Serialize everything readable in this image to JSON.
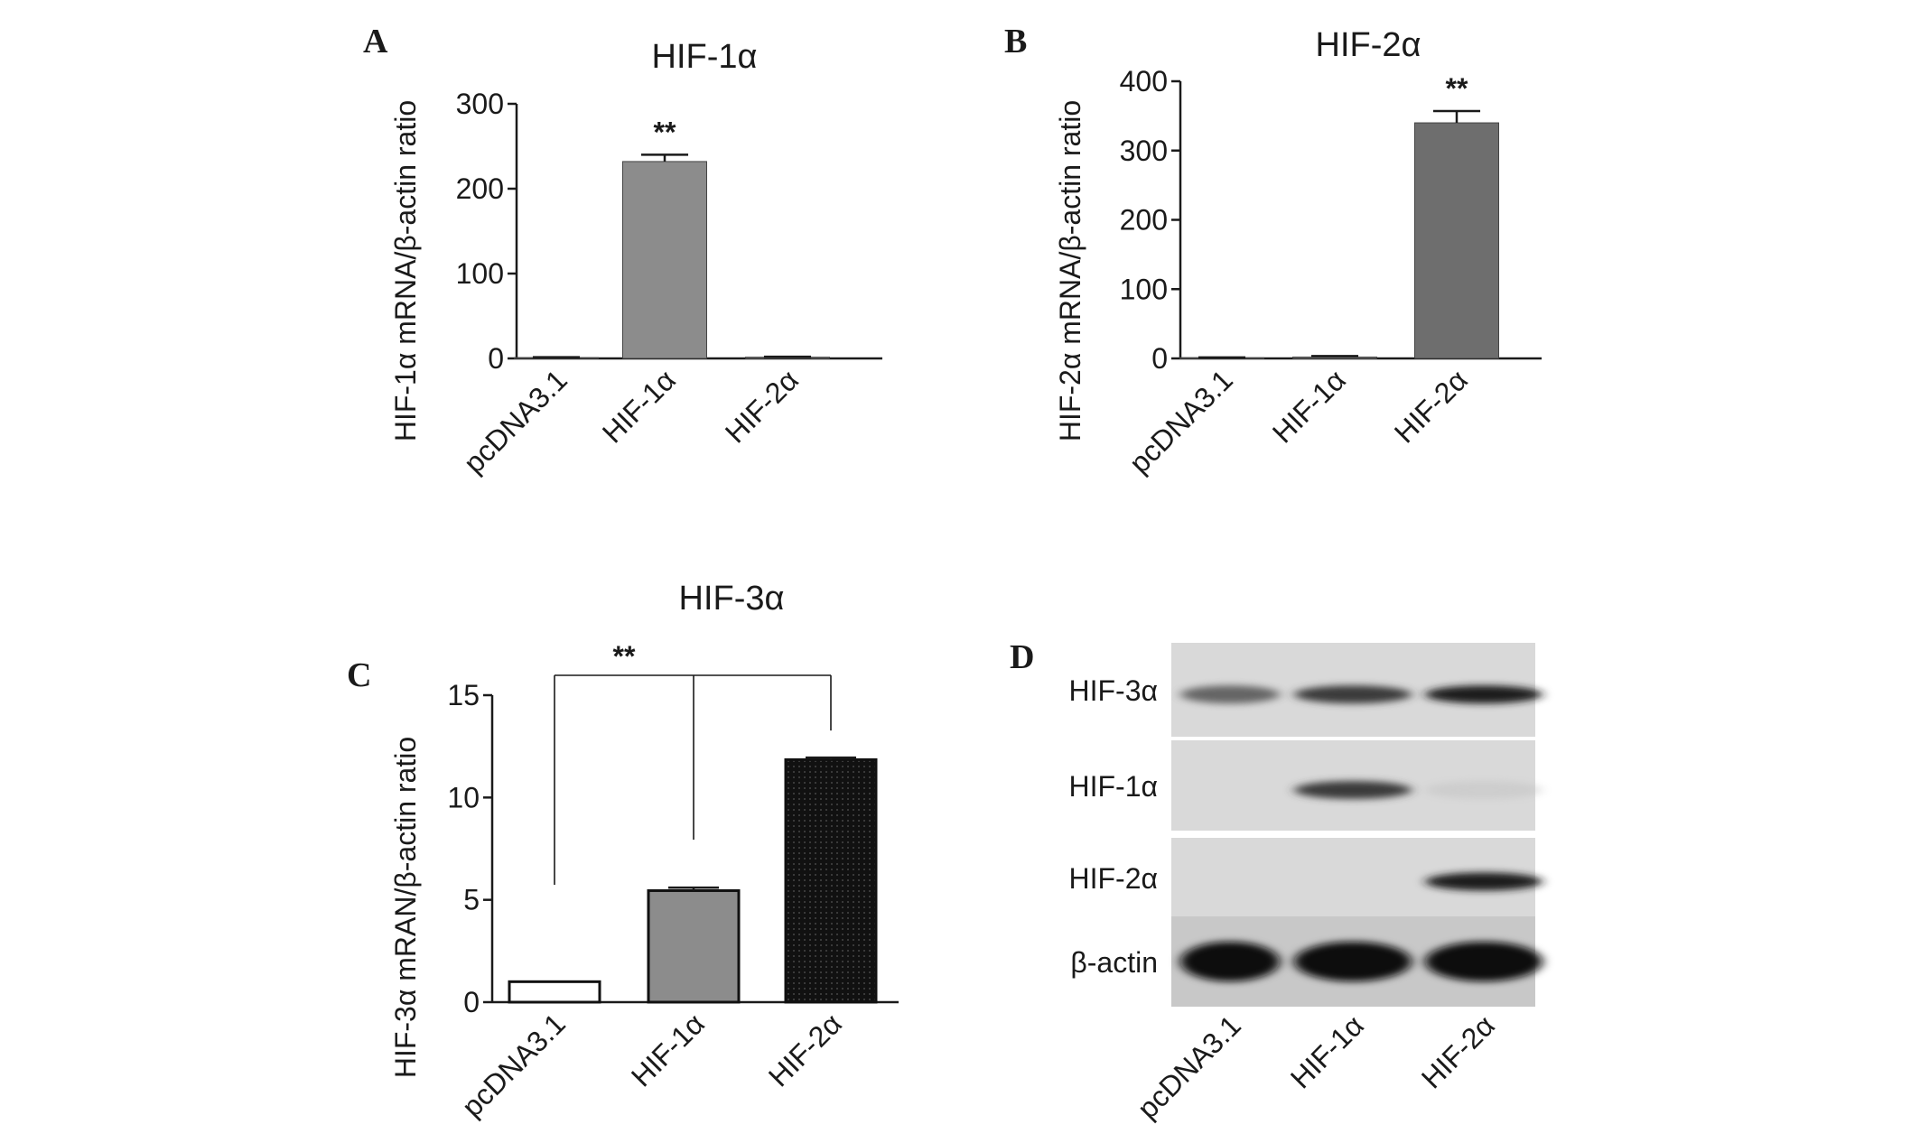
{
  "figure": {
    "panels": [
      {
        "id": "A",
        "letter": "A"
      },
      {
        "id": "B",
        "letter": "B"
      },
      {
        "id": "C",
        "letter": "C"
      },
      {
        "id": "D",
        "letter": "D"
      }
    ]
  },
  "chart_data": [
    {
      "id": "A",
      "type": "bar",
      "title": "HIF-1α",
      "ylabel": "HIF-1α mRNA/β-actin ratio",
      "xlabel": "",
      "categories": [
        "pcDNA3.1",
        "HIF-1α",
        "HIF-2α"
      ],
      "values": [
        1,
        232,
        1.5
      ],
      "errors": [
        0.5,
        8,
        0.5
      ],
      "ylim": [
        0,
        300
      ],
      "yticks": [
        0,
        100,
        200,
        300
      ],
      "significance": [
        {
          "category": "HIF-1α",
          "label": "**"
        }
      ],
      "bar_colors": [
        "#ffffff",
        "#8c8c8c",
        "#8c8c8c"
      ],
      "grid": false
    },
    {
      "id": "B",
      "type": "bar",
      "title": "HIF-2α",
      "ylabel": "HIF-2α mRNA/β-actin ratio",
      "xlabel": "",
      "categories": [
        "pcDNA3.1",
        "HIF-1α",
        "HIF-2α"
      ],
      "values": [
        1,
        2,
        340
      ],
      "errors": [
        0.5,
        1.5,
        17
      ],
      "ylim": [
        0,
        400
      ],
      "yticks": [
        0,
        100,
        200,
        300,
        400
      ],
      "significance": [
        {
          "category": "HIF-2α",
          "label": "**"
        }
      ],
      "bar_colors": [
        "#ffffff",
        "#8c8c8c",
        "#6e6e6e"
      ],
      "grid": false
    },
    {
      "id": "C",
      "type": "bar",
      "title": "HIF-3α",
      "ylabel": "HIF-3α mRAN/β-actin ratio",
      "xlabel": "",
      "categories": [
        "pcDNA3.1",
        "HIF-1α",
        "HIF-2α"
      ],
      "values": [
        1,
        5.45,
        11.85
      ],
      "errors": [
        0,
        0.15,
        0.1
      ],
      "ylim": [
        0,
        15
      ],
      "yticks": [
        0,
        5,
        10,
        15
      ],
      "significance": [
        {
          "from": "pcDNA3.1",
          "to": "HIF-2α",
          "middle": "HIF-1α",
          "label": "**"
        }
      ],
      "bar_colors": [
        "#ffffff",
        "#8c8c8c",
        "#111111"
      ],
      "grid": false
    }
  ],
  "blot": {
    "id": "D",
    "rows": [
      {
        "label": "HIF-3α",
        "intensities": [
          0.55,
          0.75,
          0.9
        ]
      },
      {
        "label": "HIF-1α",
        "intensities": [
          0,
          0.75,
          0.05
        ]
      },
      {
        "label": "HIF-2α",
        "intensities": [
          0,
          0,
          0.9
        ]
      },
      {
        "label": "β-actin",
        "intensities": [
          1,
          1,
          1
        ]
      }
    ],
    "lanes": [
      "pcDNA3.1",
      "HIF-1α",
      "HIF-2α"
    ]
  }
}
